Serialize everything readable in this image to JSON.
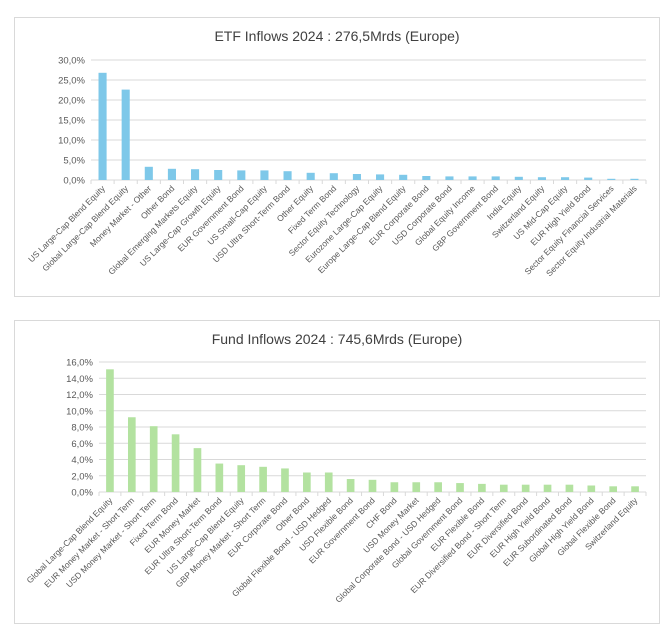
{
  "chart_data": [
    {
      "type": "bar",
      "title": "ETF  Inflows 2024 : 276,5Mrds (Europe)",
      "color": "#7ec8e9",
      "ylim": [
        0,
        30
      ],
      "yticks": [
        "0,0%",
        "5,0%",
        "10,0%",
        "15,0%",
        "20,0%",
        "25,0%",
        "30,0%"
      ],
      "grid": true,
      "categories": [
        "US Large-Cap Blend Equity",
        "Global Large-Cap Blend Equity",
        "Money Market - Other",
        "Other Bond",
        "Global Emerging Markets Equity",
        "US Large-Cap Growth Equity",
        "EUR Government Bond",
        "US Small-Cap Equity",
        "USD Ultra Short-Term Bond",
        "Other Equity",
        "Fixed Term Bond",
        "Sector Equity Technology",
        "Eurozone Large-Cap Equity",
        "Europe Large-Cap Blend Equity",
        "EUR Corporate Bond",
        "USD Corporate Bond",
        "Global Equity Income",
        "GBP Government Bond",
        "India Equity",
        "Switzerland Equity",
        "US Mid-Cap Equity",
        "EUR High Yield Bond",
        "Sector Equity Financial Services",
        "Sector Equity Industrial Materials"
      ],
      "values": [
        26.8,
        22.6,
        3.3,
        2.8,
        2.7,
        2.5,
        2.4,
        2.4,
        2.2,
        1.8,
        1.7,
        1.5,
        1.4,
        1.3,
        1.0,
        0.9,
        0.9,
        0.9,
        0.8,
        0.7,
        0.7,
        0.6,
        0.3,
        0.3
      ]
    },
    {
      "type": "bar",
      "title": "Fund Inflows 2024 : 745,6Mrds (Europe)",
      "color": "#b3e2a0",
      "ylim": [
        0,
        16
      ],
      "yticks": [
        "0,0%",
        "2,0%",
        "4,0%",
        "6,0%",
        "8,0%",
        "10,0%",
        "12,0%",
        "14,0%",
        "16,0%"
      ],
      "grid": true,
      "categories": [
        "Global Large-Cap Blend Equity",
        "EUR Money Market - Short Term",
        "USD Money Market - Short Term",
        "Fixed Term Bond",
        "EUR Money Market",
        "EUR Ultra Short-Term Bond",
        "US Large-Cap Blend Equity",
        "GBP Money Market - Short Term",
        "EUR Corporate Bond",
        "Other Bond",
        "Global Flexible Bond - USD Hedged",
        "USD Flexible Bond",
        "EUR Government Bond",
        "CHF Bond",
        "USD Money Market",
        "Global Corporate Bond - USD Hedged",
        "Global Government Bond",
        "EUR Flexible Bond",
        "EUR Diversified Bond - Short Term",
        "EUR Diversified Bond",
        "EUR High Yield Bond",
        "EUR Subordinated Bond",
        "Global High Yield Bond",
        "Global Flexible Bond",
        "Switzerland Equity"
      ],
      "values": [
        15.1,
        9.2,
        8.1,
        7.1,
        5.4,
        3.5,
        3.3,
        3.1,
        2.9,
        2.4,
        2.4,
        1.6,
        1.5,
        1.2,
        1.2,
        1.2,
        1.1,
        1.0,
        0.9,
        0.9,
        0.9,
        0.9,
        0.8,
        0.7,
        0.7
      ]
    }
  ]
}
